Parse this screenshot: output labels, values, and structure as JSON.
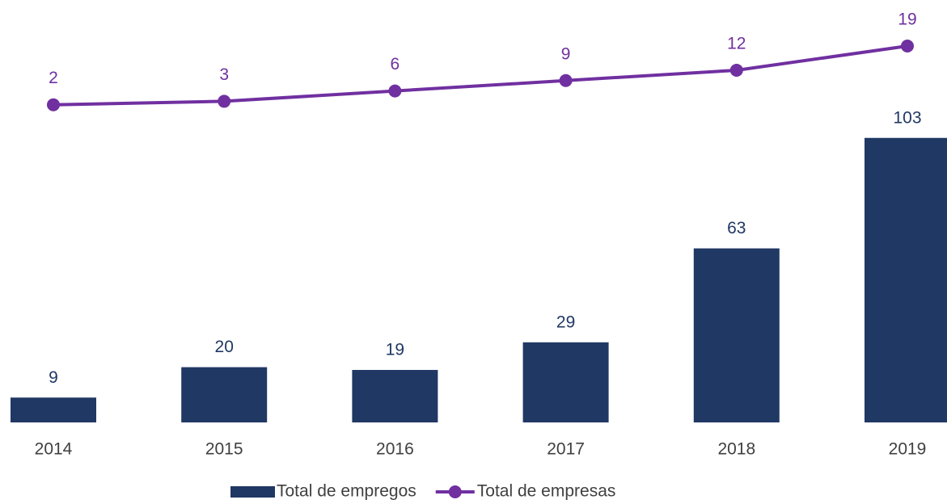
{
  "chart_data": {
    "type": "combo",
    "categories": [
      "2014",
      "2015",
      "2016",
      "2017",
      "2018",
      "2019"
    ],
    "series": [
      {
        "name": "Total de empregos",
        "type": "bar",
        "color": "#203864",
        "values": [
          9,
          20,
          19,
          29,
          63,
          103
        ]
      },
      {
        "name": "Total de empresas",
        "type": "line",
        "axis": "y2",
        "color": "#7030a0",
        "values": [
          2,
          3,
          6,
          9,
          12,
          19
        ]
      }
    ],
    "ylim": [
      0,
      150
    ],
    "y2lim": [
      -90,
      30
    ],
    "legend": "bottom"
  }
}
